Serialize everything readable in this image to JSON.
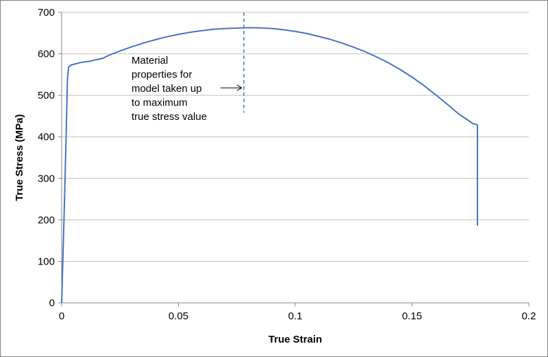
{
  "chart_data": {
    "type": "line",
    "title": "",
    "xlabel": "True Strain",
    "ylabel": "True Stress (MPa)",
    "xlim": [
      0,
      0.2
    ],
    "ylim": [
      0,
      700
    ],
    "x_ticks": [
      0,
      0.05,
      0.1,
      0.15,
      0.2
    ],
    "x_tick_labels": [
      "0",
      "0.05",
      "0.1",
      "0.15",
      "0.2"
    ],
    "y_ticks": [
      0,
      100,
      200,
      300,
      400,
      500,
      600,
      700
    ],
    "y_tick_labels": [
      "0",
      "100",
      "200",
      "300",
      "400",
      "500",
      "600",
      "700"
    ],
    "grid": "horizontal",
    "legend": "none",
    "series_color": "#4472C4",
    "series": [
      {
        "x": [
          0,
          0.001,
          0.002,
          0.0025,
          0.003,
          0.004,
          0.006,
          0.008,
          0.01,
          0.012,
          0.014,
          0.016,
          0.018,
          0.02,
          0.025,
          0.03,
          0.035,
          0.04,
          0.045,
          0.05,
          0.055,
          0.06,
          0.065,
          0.07,
          0.075,
          0.08,
          0.085,
          0.09,
          0.095,
          0.1,
          0.105,
          0.11,
          0.115,
          0.12,
          0.125,
          0.13,
          0.135,
          0.14,
          0.145,
          0.15,
          0.155,
          0.16,
          0.165,
          0.17,
          0.174,
          0.176,
          0.1775,
          0.178,
          0.178
        ],
        "y": [
          0,
          200,
          420,
          540,
          568,
          573,
          576,
          579,
          581,
          582,
          585,
          587,
          590,
          596,
          607,
          617,
          626,
          634,
          641,
          647,
          652,
          656,
          659,
          661,
          662,
          663,
          662.5,
          661,
          658,
          654,
          649,
          642,
          635,
          626,
          616,
          605,
          592,
          578,
          562,
          544,
          524,
          502,
          479,
          455,
          440,
          432,
          430,
          428,
          186
        ]
      }
    ],
    "annotations": [
      {
        "text_lines": [
          "Material",
          "properties for",
          "model taken up",
          "to maximum",
          "true stress value"
        ],
        "marker_x": 0.078,
        "marker_y_range": [
          458,
          700
        ],
        "arrow_target": [
          0.078,
          518
        ],
        "arrow_from": [
          0.068,
          518
        ]
      }
    ]
  }
}
